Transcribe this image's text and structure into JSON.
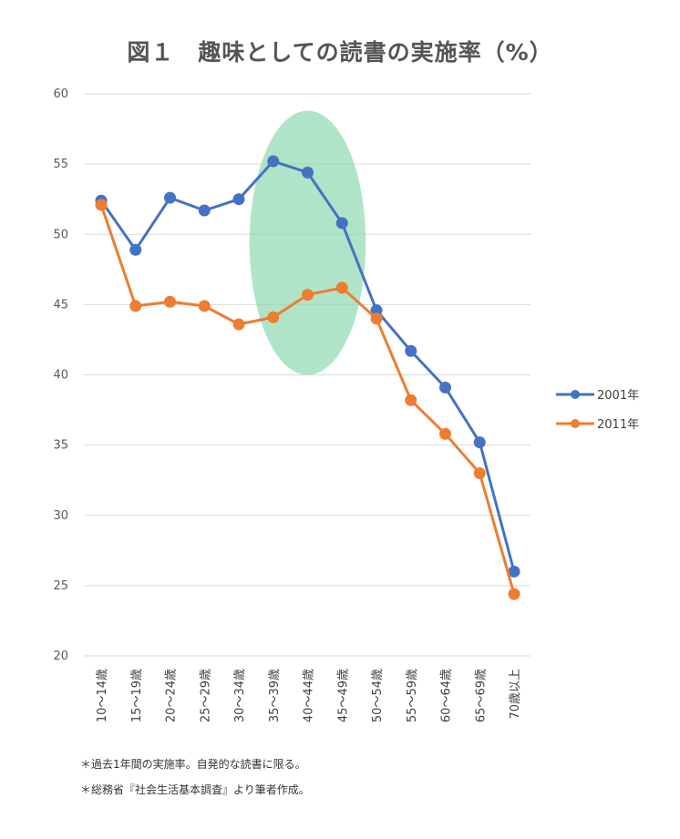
{
  "title": "図１　趣味としての読書の実施率（%）",
  "notes": [
    "＊過去1年間の実施率。自発的な読書に限る。",
    "＊総務省『社会生活基本調査』より筆者作成。"
  ],
  "chart_data": {
    "type": "line",
    "categories": [
      "10～14歳",
      "15～19歳",
      "20～24歳",
      "25～29歳",
      "30～34歳",
      "35～39歳",
      "40～44歳",
      "45～49歳",
      "50～54歳",
      "55～59歳",
      "60～64歳",
      "65～69歳",
      "70歳以上"
    ],
    "series": [
      {
        "name": "2001年",
        "color": "#4472C4",
        "values": [
          52.4,
          48.9,
          52.6,
          51.7,
          52.5,
          55.2,
          54.4,
          50.8,
          44.6,
          41.7,
          39.1,
          35.2,
          26.0
        ]
      },
      {
        "name": "2011年",
        "color": "#ED7D31",
        "values": [
          52.1,
          44.9,
          45.2,
          44.9,
          43.6,
          44.1,
          45.7,
          46.2,
          44.0,
          38.2,
          35.8,
          33.0,
          24.4
        ]
      }
    ],
    "ylim": [
      20,
      60
    ],
    "yticks": [
      20,
      25,
      30,
      35,
      40,
      45,
      50,
      55,
      60
    ],
    "grid": true,
    "legend": "right",
    "highlight": {
      "from": "35～39歳",
      "to": "45～49歳",
      "color": "#8ED9B0",
      "shape": "ellipse"
    }
  }
}
